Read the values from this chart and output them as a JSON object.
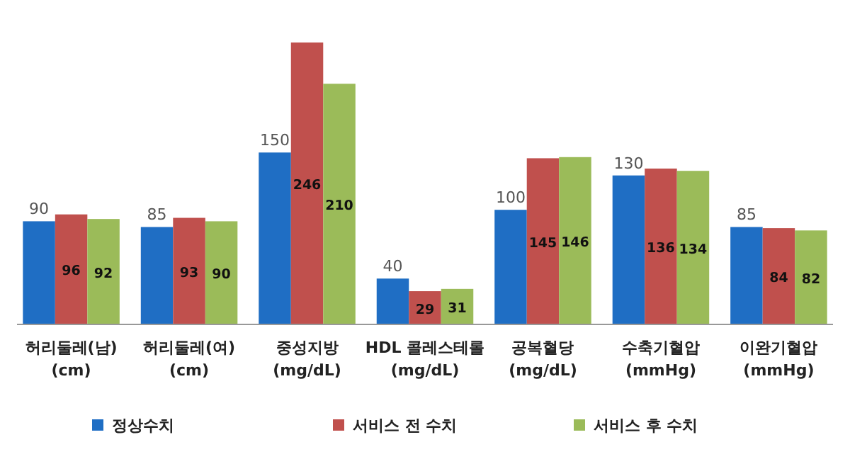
{
  "chart_data": {
    "type": "bar",
    "data_labels": true,
    "legend": "bottom",
    "categories": [
      "허리둘레(남)\n(cm)",
      "허리둘레(여)\n(cm)",
      "중성지방\n(mg/dL)",
      "HDL 콜레스테롤\n(mg/dL)",
      "공복혈당\n(mg/dL)",
      "수축기혈압\n(mmHg)",
      "이완기혈압\n(mmHg)"
    ],
    "series": [
      {
        "name": "정상수치",
        "color": "#1f6ec4",
        "values": [
          90,
          85,
          150,
          40,
          100,
          130,
          85
        ]
      },
      {
        "name": "서비스 전 수치",
        "color": "#c0504d",
        "values": [
          96,
          93,
          246,
          29,
          145,
          136,
          84
        ]
      },
      {
        "name": "서비스 후 수치",
        "color": "#9bbb59",
        "values": [
          92,
          90,
          210,
          31,
          146,
          134,
          82
        ]
      }
    ]
  }
}
